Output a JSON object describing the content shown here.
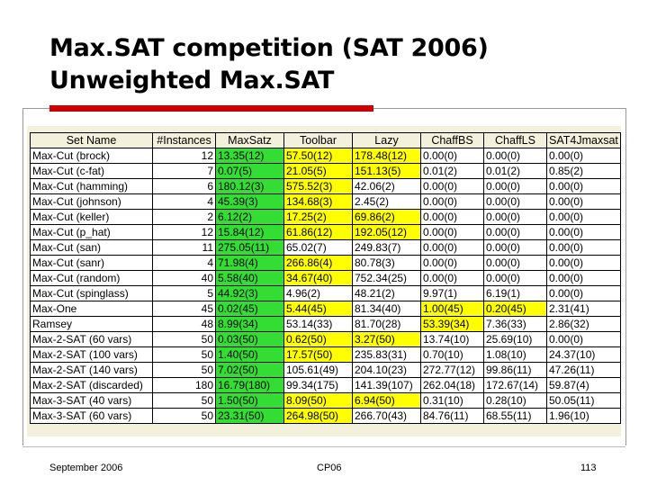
{
  "slide": {
    "title_line1": "Max.SAT competition (SAT 2006)",
    "title_line2": "Unweighted Max.SAT",
    "footer_left": "September 2006",
    "footer_center": "CP06",
    "footer_right": "113"
  },
  "table": {
    "headers": [
      "Set Name",
      "#Instances",
      "MaxSatz",
      "Toolbar",
      "Lazy",
      "ChaffBS",
      "ChaffLS",
      "SAT4Jmaxsat"
    ],
    "rows": [
      {
        "cells": [
          "Max-Cut (brock)",
          "12",
          "13.35(12)",
          "57.50(12)",
          "178.48(12)",
          "0.00(0)",
          "0.00(0)",
          "0.00(0)"
        ],
        "colors": [
          "w",
          "w",
          "g",
          "y",
          "y",
          "w",
          "w",
          "w"
        ]
      },
      {
        "cells": [
          "Max-Cut (c-fat)",
          "7",
          "0.07(5)",
          "21.05(5)",
          "151.13(5)",
          "0.01(2)",
          "0.01(2)",
          "0.85(2)"
        ],
        "colors": [
          "w",
          "w",
          "g",
          "y",
          "y",
          "w",
          "w",
          "w"
        ]
      },
      {
        "cells": [
          "Max-Cut (hamming)",
          "6",
          "180.12(3)",
          "575.52(3)",
          "42.06(2)",
          "0.00(0)",
          "0.00(0)",
          "0.00(0)"
        ],
        "colors": [
          "w",
          "w",
          "g",
          "y",
          "w",
          "w",
          "w",
          "w"
        ]
      },
      {
        "cells": [
          "Max-Cut (johnson)",
          "4",
          "45.39(3)",
          "134.68(3)",
          "2.45(2)",
          "0.00(0)",
          "0.00(0)",
          "0.00(0)"
        ],
        "colors": [
          "w",
          "w",
          "g",
          "y",
          "w",
          "w",
          "w",
          "w"
        ]
      },
      {
        "cells": [
          "Max-Cut (keller)",
          "2",
          "6.12(2)",
          "17.25(2)",
          "69.86(2)",
          "0.00(0)",
          "0.00(0)",
          "0.00(0)"
        ],
        "colors": [
          "w",
          "w",
          "g",
          "y",
          "y",
          "w",
          "w",
          "w"
        ]
      },
      {
        "cells": [
          "Max-Cut (p_hat)",
          "12",
          "15.84(12)",
          "61.86(12)",
          "192.05(12)",
          "0.00(0)",
          "0.00(0)",
          "0.00(0)"
        ],
        "colors": [
          "w",
          "w",
          "g",
          "y",
          "y",
          "w",
          "w",
          "w"
        ]
      },
      {
        "cells": [
          "Max-Cut (san)",
          "11",
          "275.05(11)",
          "65.02(7)",
          "249.83(7)",
          "0.00(0)",
          "0.00(0)",
          "0.00(0)"
        ],
        "colors": [
          "w",
          "w",
          "g",
          "w",
          "w",
          "w",
          "w",
          "w"
        ]
      },
      {
        "cells": [
          "Max-Cut (sanr)",
          "4",
          "71.98(4)",
          "266.86(4)",
          "80.78(3)",
          "0.00(0)",
          "0.00(0)",
          "0.00(0)"
        ],
        "colors": [
          "w",
          "w",
          "g",
          "y",
          "w",
          "w",
          "w",
          "w"
        ]
      },
      {
        "cells": [
          "Max-Cut (random)",
          "40",
          "5.58(40)",
          "34.67(40)",
          "752.34(25)",
          "0.00(0)",
          "0.00(0)",
          "0.00(0)"
        ],
        "colors": [
          "w",
          "w",
          "g",
          "y",
          "w",
          "w",
          "w",
          "w"
        ]
      },
      {
        "cells": [
          "Max-Cut (spinglass)",
          "5",
          "44.92(3)",
          "4.96(2)",
          "48.21(2)",
          "9.97(1)",
          "6.19(1)",
          "0.00(0)"
        ],
        "colors": [
          "w",
          "w",
          "g",
          "w",
          "w",
          "w",
          "w",
          "w"
        ]
      },
      {
        "cells": [
          "Max-One",
          "45",
          "0.02(45)",
          "5.44(45)",
          "81.34(40)",
          "1.00(45)",
          "0.20(45)",
          "2.31(41)"
        ],
        "colors": [
          "w",
          "w",
          "g",
          "y",
          "w",
          "y",
          "y",
          "w"
        ]
      },
      {
        "cells": [
          "Ramsey",
          "48",
          "8.99(34)",
          "53.14(33)",
          "81.70(28)",
          "53.39(34)",
          "7.36(33)",
          "2.86(32)"
        ],
        "colors": [
          "w",
          "w",
          "g",
          "w",
          "w",
          "y",
          "w",
          "w"
        ]
      },
      {
        "cells": [
          "Max-2-SAT (60 vars)",
          "50",
          "0.03(50)",
          "0.62(50)",
          "3.27(50)",
          "13.74(10)",
          "25.69(10)",
          "0.00(0)"
        ],
        "colors": [
          "w",
          "w",
          "g",
          "y",
          "y",
          "w",
          "w",
          "w"
        ]
      },
      {
        "cells": [
          "Max-2-SAT (100 vars)",
          "50",
          "1.40(50)",
          "17.57(50)",
          "235.83(31)",
          "0.70(10)",
          "1.08(10)",
          "24.37(10)"
        ],
        "colors": [
          "w",
          "w",
          "g",
          "y",
          "w",
          "w",
          "w",
          "w"
        ]
      },
      {
        "cells": [
          "Max-2-SAT (140 vars)",
          "50",
          "7.02(50)",
          "105.61(49)",
          "204.10(23)",
          "272.77(12)",
          "99.86(11)",
          "47.26(11)"
        ],
        "colors": [
          "w",
          "w",
          "g",
          "w",
          "w",
          "w",
          "w",
          "w"
        ]
      },
      {
        "cells": [
          "Max-2-SAT (discarded)",
          "180",
          "16.79(180)",
          "99.34(175)",
          "141.39(107)",
          "262.04(18)",
          "172.67(14)",
          "59.87(4)"
        ],
        "colors": [
          "w",
          "w",
          "g",
          "w",
          "w",
          "w",
          "w",
          "w"
        ]
      },
      {
        "cells": [
          "Max-3-SAT (40 vars)",
          "50",
          "1.50(50)",
          "8.09(50)",
          "6.94(50)",
          "0.31(10)",
          "0.28(10)",
          "50.05(11)"
        ],
        "colors": [
          "w",
          "w",
          "g",
          "y",
          "y",
          "w",
          "w",
          "w"
        ]
      },
      {
        "cells": [
          "Max-3-SAT (60 vars)",
          "50",
          "23.31(50)",
          "264.98(50)",
          "266.70(43)",
          "84.76(11)",
          "68.55(11)",
          "1.96(10)"
        ],
        "colors": [
          "w",
          "w",
          "g",
          "y",
          "w",
          "w",
          "w",
          "w"
        ]
      }
    ]
  }
}
